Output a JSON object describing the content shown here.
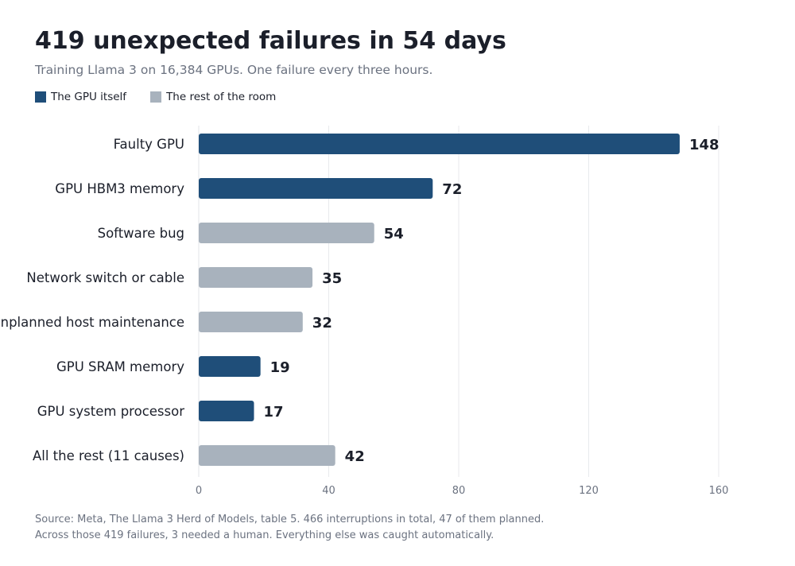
{
  "header": {
    "title": "419 unexpected failures in 54 days",
    "subtitle": "Training Llama 3 on 16,384 GPUs. One failure every three hours."
  },
  "legend": [
    {
      "label": "The GPU itself",
      "color": "#1f4e79"
    },
    {
      "label": "The rest of the room",
      "color": "#a8b2bd"
    }
  ],
  "chart_data": {
    "type": "bar",
    "orientation": "horizontal",
    "categories": [
      "Faulty GPU",
      "GPU HBM3 memory",
      "Software bug",
      "Network switch or cable",
      "Unplanned host maintenance",
      "GPU SRAM memory",
      "GPU system processor",
      "All the rest (11 causes)"
    ],
    "values": [
      148,
      72,
      54,
      35,
      32,
      19,
      17,
      42
    ],
    "groups": [
      "gpu",
      "gpu",
      "rest",
      "rest",
      "rest",
      "gpu",
      "gpu",
      "rest"
    ],
    "group_colors": {
      "gpu": "#1f4e79",
      "rest": "#a8b2bd"
    },
    "xlim": [
      0,
      160
    ],
    "xticks": [
      0,
      40,
      80,
      120,
      160
    ],
    "grid": "vertical",
    "data_labels": true,
    "legend_placement": "top-left"
  },
  "footnote": {
    "line1": "Source: Meta, The Llama 3 Herd of Models, table 5. 466 interruptions in total, 47 of them planned.",
    "line2": "Across those 419 failures, 3 needed a human. Everything else was caught automatically."
  }
}
